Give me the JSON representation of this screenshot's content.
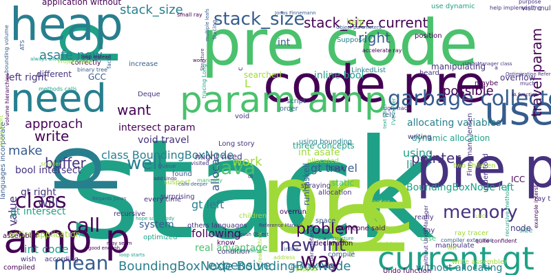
{
  "palette": [
    "#440154",
    "#46327e",
    "#365c8d",
    "#277f8e",
    "#1fa187",
    "#4ac16d",
    "#a0da39",
    "#fde725"
  ],
  "words": [
    {
      "text": "stack",
      "color": "#1fa187"
    },
    {
      "text": "pre code",
      "color": "#4ac16d"
    },
    {
      "text": "pre",
      "color": "#a0da39"
    },
    {
      "text": "p",
      "color": "#a0da39"
    },
    {
      "text": "p",
      "color": "#277f8e"
    },
    {
      "text": "p",
      "color": "#1fa187"
    },
    {
      "text": "code pre",
      "color": "#440154"
    },
    {
      "text": "heap",
      "color": "#277f8e"
    },
    {
      "text": "pre p",
      "color": "#46327e"
    },
    {
      "text": "param amp",
      "color": "#4ac16d"
    },
    {
      "text": "need",
      "color": "#277f8e"
    },
    {
      "text": "use",
      "color": "#365c8d"
    },
    {
      "text": "amp p",
      "color": "#440154"
    },
    {
      "text": "current gt",
      "color": "#1fa187"
    },
    {
      "text": "stack_size current",
      "color": "#440154"
    },
    {
      "text": "stack_size",
      "color": "#277f8e"
    },
    {
      "text": "stack_size",
      "color": "#365c8d"
    },
    {
      "text": "garbage collector",
      "color": "#365c8d"
    },
    {
      "text": "BoundingBoxNode BoundingBoxNode",
      "color": "#277f8e"
    },
    {
      "text": "Java",
      "color": "#4ac16d"
    },
    {
      "text": "class",
      "color": "#440154"
    },
    {
      "text": "call",
      "color": "#440154"
    },
    {
      "text": "mean",
      "color": "#365c8d"
    },
    {
      "text": "way",
      "color": "#440154"
    },
    {
      "text": "new int",
      "color": "#46327e"
    },
    {
      "text": "problem",
      "color": "#440154"
    },
    {
      "text": "expensive",
      "color": "#277f8e"
    },
    {
      "text": "memory",
      "color": "#46327e"
    },
    {
      "text": "travel param",
      "color": "#440154"
    },
    {
      "text": "pointer",
      "color": "#46327e"
    },
    {
      "text": "well",
      "color": "#277f8e"
    },
    {
      "text": "asafe new",
      "color": "#277f8e"
    },
    {
      "text": "right",
      "color": "#365c8d"
    },
    {
      "text": "possible",
      "color": "#440154"
    },
    {
      "text": "approach",
      "color": "#440154"
    },
    {
      "text": "write",
      "color": "#440154"
    },
    {
      "text": "buffer",
      "color": "#46327e"
    },
    {
      "text": "make",
      "color": "#365c8d"
    },
    {
      "text": "class BoundingBoxNode",
      "color": "#277f8e"
    },
    {
      "text": "intersect param",
      "color": "#440154"
    },
    {
      "text": "void travel",
      "color": "#46327e"
    },
    {
      "text": "want",
      "color": "#440154"
    },
    {
      "text": "work",
      "color": "#a0da39"
    },
    {
      "text": "alloca",
      "color": "#365c8d"
    },
    {
      "text": "int code",
      "color": "#1fa187"
    },
    {
      "text": "gt left",
      "color": "#277f8e"
    },
    {
      "text": "following",
      "color": "#440154"
    },
    {
      "text": "system",
      "color": "#365c8d"
    },
    {
      "text": "real advantage",
      "color": "#4ac16d"
    },
    {
      "text": "will",
      "color": "#46327e"
    },
    {
      "text": "bool intersect",
      "color": "#46327e"
    },
    {
      "text": "gt right",
      "color": "#46327e"
    },
    {
      "text": "gt travel",
      "color": "#365c8d"
    },
    {
      "text": "using",
      "color": "#1fa187"
    },
    {
      "text": "li",
      "color": "#1fa187"
    },
    {
      "text": "int",
      "color": "#365c8d"
    },
    {
      "text": "BoundingBoxNode left",
      "color": "#1fa187"
    },
    {
      "text": "allocating variables",
      "color": "#277f8e"
    },
    {
      "text": "dynamic allocation",
      "color": "#1fa187"
    },
    {
      "text": "overflow",
      "color": "#46327e"
    },
    {
      "text": "manipulating",
      "color": "#46327e"
    },
    {
      "text": "inline bool",
      "color": "#1fa187"
    },
    {
      "text": "int asafe",
      "color": "#a0da39"
    },
    {
      "text": "entire application",
      "color": "#a0da39"
    },
    {
      "text": "three concepts",
      "color": "#1fa187"
    },
    {
      "text": "might need",
      "color": "#46327e"
    },
    {
      "text": "found",
      "color": "#365c8d"
    },
    {
      "text": "value",
      "color": "#46327e"
    },
    {
      "text": "gt intersect",
      "color": "#1fa187"
    },
    {
      "text": "different",
      "color": "#46327e"
    },
    {
      "text": "left right",
      "color": "#46327e"
    },
    {
      "text": "application without",
      "color": "#440154"
    },
    {
      "text": "correctly",
      "color": "#440154"
    },
    {
      "text": "GCC",
      "color": "#365c8d"
    },
    {
      "text": "Deque",
      "color": "#46327e"
    },
    {
      "text": "increase",
      "color": "#365c8d"
    },
    {
      "text": "help",
      "color": "#a0da39"
    },
    {
      "text": "searched",
      "color": "#a0da39"
    },
    {
      "text": "script",
      "color": "#365c8d"
    },
    {
      "text": "heard",
      "color": "#46327e"
    },
    {
      "text": "LinkedList",
      "color": "#277f8e"
    },
    {
      "text": "use dynamic",
      "color": "#1fa187"
    },
    {
      "text": "position",
      "color": "#440154"
    },
    {
      "text": "Suppose",
      "color": "#277f8e"
    },
    {
      "text": "maybe",
      "color": "#440154"
    },
    {
      "text": "rely",
      "color": "#365c8d"
    },
    {
      "text": "ugly hack",
      "color": "#46327e"
    },
    {
      "text": "hack",
      "color": "#46327e"
    },
    {
      "text": "static",
      "color": "#4ac16d"
    },
    {
      "text": "spraying",
      "color": "#46327e"
    },
    {
      "text": "allocated",
      "color": "#a0da39"
    },
    {
      "text": "allocation",
      "color": "#46327e"
    },
    {
      "text": "writing",
      "color": "#46327e"
    },
    {
      "text": "using bounding",
      "color": "#277f8e"
    },
    {
      "text": "Long story",
      "color": "#46327e"
    },
    {
      "text": "Queue",
      "color": "#365c8d"
    },
    {
      "text": "surprising",
      "color": "#46327e"
    },
    {
      "text": "suspect",
      "color": "#a0da39"
    },
    {
      "text": "visited",
      "color": "#46327e"
    },
    {
      "text": "optimized",
      "color": "#1fa187"
    },
    {
      "text": "recursive",
      "color": "#46327e"
    },
    {
      "text": "others languages",
      "color": "#46327e"
    },
    {
      "text": "children",
      "color": "#a0da39"
    },
    {
      "text": "know",
      "color": "#440154"
    },
    {
      "text": "condition",
      "color": "#46327e"
    },
    {
      "text": "cracer using",
      "color": "#1fa187"
    },
    {
      "text": "runhaskell",
      "color": "#365c8d"
    },
    {
      "text": "declaration",
      "color": "#440154"
    },
    {
      "text": "overrun",
      "color": "#440154"
    },
    {
      "text": "someone said",
      "color": "#440154"
    },
    {
      "text": "faster",
      "color": "#a0da39"
    },
    {
      "text": "space",
      "color": "#365c8d"
    },
    {
      "text": "far",
      "color": "#440154"
    },
    {
      "text": "fail",
      "color": "#a0da39"
    },
    {
      "text": "compile",
      "color": "#365c8d"
    },
    {
      "text": "case",
      "color": "#4ac16d"
    },
    {
      "text": "really",
      "color": "#46327e"
    },
    {
      "text": "say",
      "color": "#46327e"
    },
    {
      "text": "two children",
      "color": "#a0da39"
    },
    {
      "text": "ray tracing",
      "color": "#46327e"
    },
    {
      "text": "node",
      "color": "#46327e"
    },
    {
      "text": "ray tracer",
      "color": "#a0da39"
    },
    {
      "text": "manipulate",
      "color": "#46327e"
    },
    {
      "text": "left",
      "color": "#a0da39"
    },
    {
      "text": "without allocating",
      "color": "#277f8e"
    },
    {
      "text": "Undo function",
      "color": "#440154"
    },
    {
      "text": "popped",
      "color": "#a0da39"
    },
    {
      "text": "perfect solution",
      "color": "#277f8e"
    },
    {
      "text": "address",
      "color": "#a0da39"
    },
    {
      "text": "inline",
      "color": "#365c8d"
    },
    {
      "text": "compiled",
      "color": "#440154"
    },
    {
      "text": "wish",
      "color": "#46327e"
    },
    {
      "text": "according",
      "color": "#46327e"
    },
    {
      "text": "assembler",
      "color": "#440154"
    },
    {
      "text": "smaller",
      "color": "#a0da39"
    },
    {
      "text": "methods calls",
      "color": "#1fa187"
    },
    {
      "text": "Project Euler",
      "color": "#a0da39"
    },
    {
      "text": "binary tree",
      "color": "#365c8d"
    },
    {
      "text": "fact",
      "color": "#365c8d"
    },
    {
      "text": "small ray",
      "color": "#440154"
    },
    {
      "text": "accelerate ray",
      "color": "#440154"
    },
    {
      "text": "visit multiple",
      "color": "#46327e"
    },
    {
      "text": "purpose",
      "color": "#46327e"
    },
    {
      "text": "help implementing",
      "color": "#46327e"
    },
    {
      "text": "Jonas Finnemann",
      "color": "#365c8d"
    },
    {
      "text": "Object parameters",
      "color": "#365c8d"
    },
    {
      "text": "loop instead",
      "color": "#440154"
    },
    {
      "text": "always allocate",
      "color": "#1fa187"
    },
    {
      "text": "UndoManager class",
      "color": "#46327e"
    },
    {
      "text": "Optimization Reference",
      "color": "#46327e"
    },
    {
      "text": "IA function",
      "color": "#440154"
    },
    {
      "text": "much",
      "color": "#46327e"
    },
    {
      "text": "languages incorporate",
      "color": "#365c8d"
    },
    {
      "text": "volume hierarchies",
      "color": "#440154"
    },
    {
      "text": "bounding volume",
      "color": "#365c8d"
    },
    {
      "text": "Structure",
      "color": "#46327e"
    },
    {
      "text": "Regards Jonas",
      "color": "#365c8d"
    },
    {
      "text": "hope somebody",
      "color": "#1fa187"
    },
    {
      "text": "add Undo",
      "color": "#46327e"
    },
    {
      "text": "calls deeper",
      "color": "#365c8d"
    },
    {
      "text": "may seem",
      "color": "#440154"
    },
    {
      "text": "good enough",
      "color": "#440154"
    },
    {
      "text": "loop starts",
      "color": "#1fa187"
    },
    {
      "text": "push Object",
      "color": "#46327e"
    },
    {
      "text": "Reference Manual",
      "color": "#46327e"
    },
    {
      "text": "Data Structure",
      "color": "#1fa187"
    },
    {
      "text": "compiler extension",
      "color": "#365c8d"
    },
    {
      "text": "quite confident",
      "color": "#440154"
    },
    {
      "text": "write assembler",
      "color": "#a0da39"
    },
    {
      "text": "LIFO",
      "color": "#a0da39"
    },
    {
      "text": "Finnemann Jensen",
      "color": "#46327e"
    },
    {
      "text": "thinking",
      "color": "#a0da39"
    },
    {
      "text": "ICC",
      "color": "#440154"
    },
    {
      "text": "understood",
      "color": "#46327e"
    },
    {
      "text": "size",
      "color": "#1fa187"
    },
    {
      "text": "tracing",
      "color": "#365c8d"
    },
    {
      "text": "order",
      "color": "#365c8d"
    },
    {
      "text": "void",
      "color": "#46327e"
    },
    {
      "text": "manually",
      "color": "#4ac16d"
    },
    {
      "text": "every time",
      "color": "#46327e"
    },
    {
      "text": "worry",
      "color": "#440154"
    },
    {
      "text": "c",
      "color": "#46327e"
    },
    {
      "text": "L",
      "color": "#a0da39"
    },
    {
      "text": "ol",
      "color": "#46327e"
    },
    {
      "text": "a",
      "color": "#46327e"
    },
    {
      "text": "b",
      "color": "#46327e"
    },
    {
      "text": "accessing",
      "color": "#365c8d"
    },
    {
      "text": "ATS",
      "color": "#365c8d"
    },
    {
      "text": "story short",
      "color": "#a0da39"
    },
    {
      "text": "tracing Long",
      "color": "#1fa187"
    },
    {
      "text": "multiple leafs",
      "color": "#365c8d"
    },
    {
      "text": "example interst",
      "color": "#440154"
    },
    {
      "text": "recursive methods",
      "color": "#1fa187"
    },
    {
      "text": "really think",
      "color": "#a0da39"
    },
    {
      "text": "parameters a",
      "color": "#46327e"
    },
    {
      "text": "without UndoManager",
      "color": "#46327e"
    },
    {
      "text": "text Editor",
      "color": "#1fa187"
    },
    {
      "text": "I've never",
      "color": "#1fa187"
    }
  ]
}
